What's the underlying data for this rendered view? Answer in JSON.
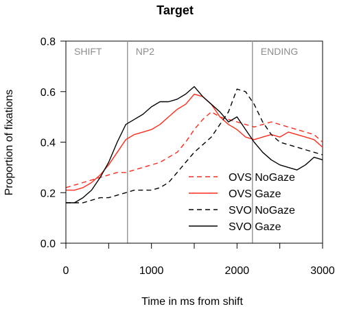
{
  "chart_data": {
    "type": "line",
    "title": "Target",
    "xlabel": "Time in ms from shift",
    "ylabel": "Proportion of fixations",
    "xlim": [
      0,
      3000
    ],
    "ylim": [
      0.0,
      0.8
    ],
    "xticks": [
      0,
      1000,
      2000,
      3000
    ],
    "xtick_labels": [
      "0",
      "1000",
      "2000",
      "3000"
    ],
    "yticks": [
      0.0,
      0.2,
      0.4,
      0.6,
      0.8
    ],
    "ytick_labels": [
      "0.0",
      "0.2",
      "0.4",
      "0.6",
      "0.8"
    ],
    "grid": false,
    "legend_position": "lower-right",
    "regions": [
      {
        "label": "SHIFT",
        "x": 0
      },
      {
        "label": "NP2",
        "x": 720
      },
      {
        "label": "ENDING",
        "x": 2180
      }
    ],
    "vlines": [
      720,
      2180
    ],
    "x": [
      0,
      100,
      200,
      300,
      400,
      500,
      600,
      700,
      800,
      900,
      1000,
      1100,
      1200,
      1300,
      1400,
      1500,
      1600,
      1700,
      1800,
      1900,
      2000,
      2100,
      2200,
      2300,
      2400,
      2500,
      2600,
      2700,
      2800,
      2900,
      3000
    ],
    "series": [
      {
        "name": "OVS NoGaze",
        "color": "#ff2a1a",
        "dash": "dashed",
        "values": [
          0.22,
          0.23,
          0.24,
          0.25,
          0.26,
          0.27,
          0.28,
          0.28,
          0.29,
          0.3,
          0.31,
          0.32,
          0.34,
          0.36,
          0.4,
          0.45,
          0.49,
          0.52,
          0.5,
          0.49,
          0.48,
          0.47,
          0.46,
          0.47,
          0.48,
          0.47,
          0.46,
          0.45,
          0.44,
          0.43,
          0.4
        ]
      },
      {
        "name": "OVS Gaze",
        "color": "#ff2a1a",
        "dash": "solid",
        "values": [
          0.21,
          0.21,
          0.22,
          0.24,
          0.27,
          0.31,
          0.36,
          0.41,
          0.43,
          0.44,
          0.45,
          0.47,
          0.5,
          0.53,
          0.55,
          0.59,
          0.58,
          0.55,
          0.5,
          0.47,
          0.45,
          0.42,
          0.41,
          0.42,
          0.43,
          0.42,
          0.44,
          0.43,
          0.42,
          0.41,
          0.38
        ]
      },
      {
        "name": "SVO NoGaze",
        "color": "#000000",
        "dash": "dashed",
        "values": [
          0.16,
          0.16,
          0.16,
          0.17,
          0.18,
          0.18,
          0.19,
          0.2,
          0.21,
          0.21,
          0.21,
          0.22,
          0.24,
          0.28,
          0.32,
          0.36,
          0.39,
          0.42,
          0.47,
          0.52,
          0.61,
          0.6,
          0.55,
          0.48,
          0.43,
          0.4,
          0.39,
          0.38,
          0.37,
          0.36,
          0.35
        ]
      },
      {
        "name": "SVO Gaze",
        "color": "#000000",
        "dash": "solid",
        "values": [
          0.16,
          0.16,
          0.18,
          0.21,
          0.26,
          0.32,
          0.4,
          0.47,
          0.49,
          0.51,
          0.54,
          0.56,
          0.56,
          0.57,
          0.59,
          0.62,
          0.58,
          0.55,
          0.52,
          0.48,
          0.5,
          0.45,
          0.4,
          0.36,
          0.33,
          0.31,
          0.3,
          0.29,
          0.31,
          0.34,
          0.33
        ]
      }
    ]
  }
}
